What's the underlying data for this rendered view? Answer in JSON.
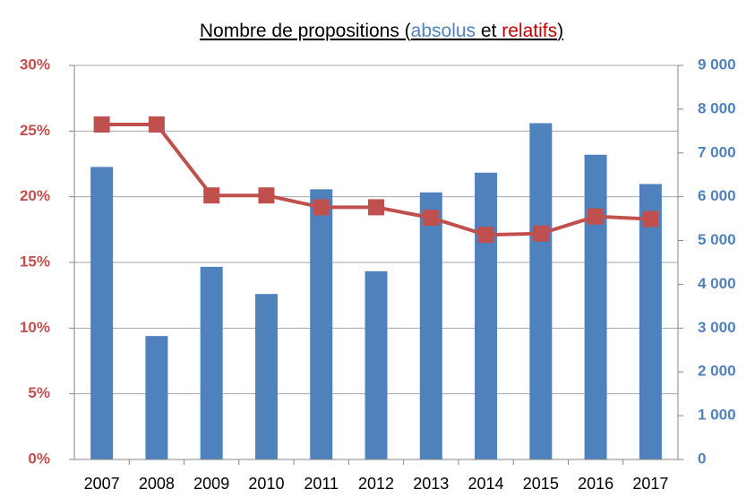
{
  "chart_data": {
    "type": "bar-line",
    "title_parts": [
      {
        "text": "Nombre de propositions (",
        "color": "#000000"
      },
      {
        "text": "absolus ",
        "color": "#4f81bd"
      },
      {
        "text": "et ",
        "color": "#000000"
      },
      {
        "text": "relatifs",
        "color": "#c00000"
      },
      {
        "text": ")",
        "color": "#000000"
      }
    ],
    "categories": [
      "2007",
      "2008",
      "2009",
      "2010",
      "2011",
      "2012",
      "2013",
      "2014",
      "2015",
      "2016",
      "2017"
    ],
    "series": [
      {
        "type": "bar",
        "axis": "y2",
        "color": "#4f81bd",
        "values": [
          6680,
          2820,
          4400,
          3780,
          6170,
          4300,
          6100,
          6550,
          7680,
          6960,
          6290
        ]
      },
      {
        "type": "line",
        "axis": "y",
        "color": "#c0504d",
        "values": [
          25.5,
          25.5,
          20.1,
          20.1,
          19.2,
          19.2,
          18.4,
          17.1,
          17.2,
          18.5,
          18.3
        ]
      }
    ],
    "ylim": [
      0,
      30
    ],
    "yticks": [
      {
        "value": 0,
        "label": "0%"
      },
      {
        "value": 5,
        "label": "5%"
      },
      {
        "value": 10,
        "label": "10%"
      },
      {
        "value": 15,
        "label": "15%"
      },
      {
        "value": 20,
        "label": "20%"
      },
      {
        "value": 25,
        "label": "25%"
      },
      {
        "value": 30,
        "label": "30%"
      }
    ],
    "y_tick_color": "#c0504d",
    "y2lim": [
      0,
      9000
    ],
    "y2ticks": [
      0,
      {
        "value": 1000,
        "label": "1 000"
      },
      {
        "value": 2000,
        "label": "2 000"
      },
      {
        "value": 3000,
        "label": "3 000"
      },
      {
        "value": 4000,
        "label": "4 000"
      },
      {
        "value": 5000,
        "label": "5 000"
      },
      {
        "value": 6000,
        "label": "6 000"
      },
      {
        "value": 7000,
        "label": "7 000"
      },
      {
        "value": 8000,
        "label": "8 000"
      },
      {
        "value": 9000,
        "label": "9 000"
      }
    ],
    "y2_tick_color": "#4f81bd",
    "grid": true
  }
}
